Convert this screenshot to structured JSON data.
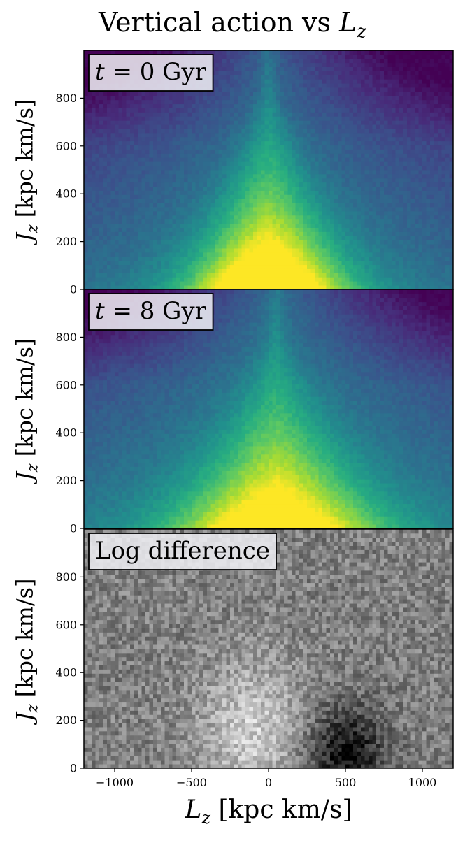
{
  "figure": {
    "title_prefix": "Vertical action vs ",
    "title_math": "L",
    "title_sub": "z"
  },
  "chart_data": {
    "type": "heatmap",
    "title": "Vertical action vs Lz",
    "xlabel": "Lz [kpc km/s]",
    "ylabel": "Jz [kpc km/s]",
    "xlim": [
      -1200,
      1200
    ],
    "ylim": [
      0,
      1000
    ],
    "x_ticks": [
      -1000,
      -500,
      0,
      500,
      1000
    ],
    "x_tick_labels": [
      "−1000",
      "−500",
      "0",
      "500",
      "1000"
    ],
    "y_ticks": [
      0,
      200,
      400,
      600,
      800
    ],
    "y_tick_labels": [
      "0",
      "200",
      "400",
      "600",
      "800"
    ],
    "panels": [
      {
        "label": "t = 0 Gyr",
        "colormap": "viridis",
        "description_values": {
          "peak_location": [
            0,
            0
          ],
          "peak_intensity": 1.0,
          "wedge_half_width_at_Jz0": 400,
          "background_level": 0.3
        }
      },
      {
        "label": "t = 8 Gyr",
        "colormap": "viridis",
        "description_values": {
          "peak_location": [
            50,
            0
          ],
          "peak_intensity": 0.85,
          "wedge_half_width_at_Jz0": 550,
          "background_level": 0.35
        }
      },
      {
        "label": "Log difference",
        "colormap": "gray",
        "description_values": {
          "bright_region_center": [
            -100,
            150
          ],
          "dark_region_center": [
            500,
            60
          ],
          "background_level": 0.5
        }
      }
    ]
  },
  "axes": {
    "xlabel_prefix": "L",
    "xlabel_sub": "z",
    "xlabel_units": " [kpc km/s]",
    "ylabel_prefix": "J",
    "ylabel_sub": "z",
    "ylabel_units": " [kpc km/s]"
  }
}
